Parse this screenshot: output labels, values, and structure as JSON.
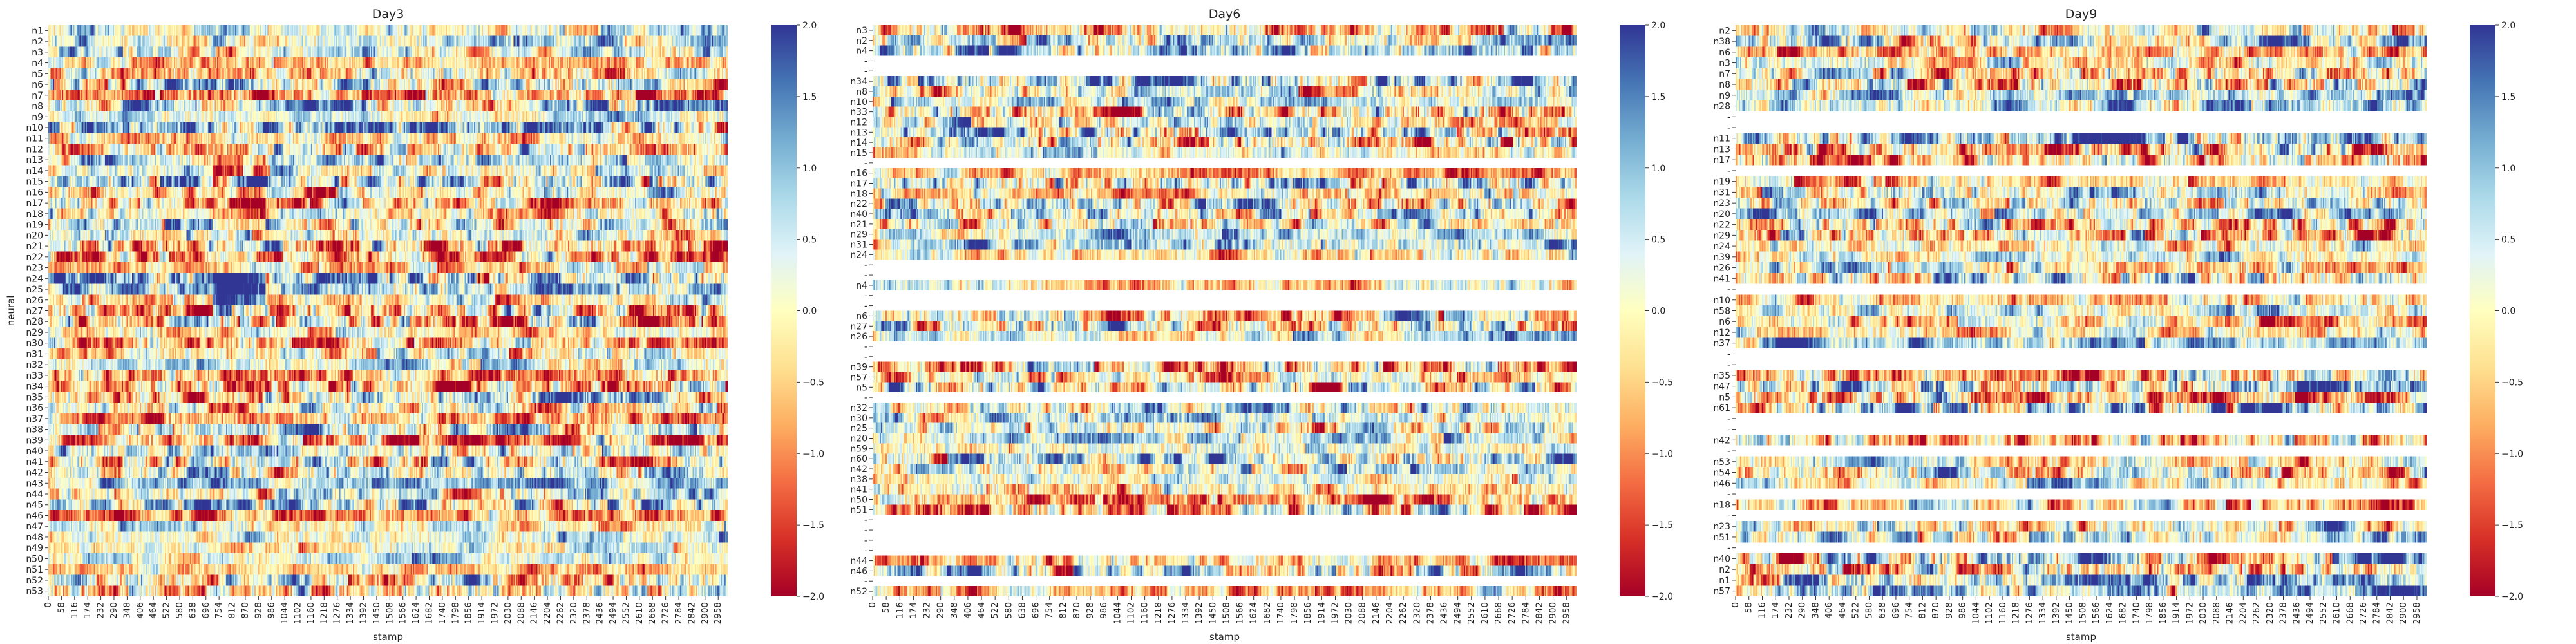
{
  "figure": {
    "colormap": "RdYlBu",
    "colormap_stops": [
      "#a50026",
      "#d73027",
      "#f46d43",
      "#fdae61",
      "#fee090",
      "#ffffbf",
      "#e0f3f8",
      "#abd9e9",
      "#74add1",
      "#4575b4",
      "#313695"
    ],
    "missing_color": "#ffffff"
  },
  "chart_data": [
    {
      "type": "heatmap",
      "title": "Day3",
      "ylabel": "neural",
      "xlabel": "stamp",
      "x_range": [
        0,
        3000
      ],
      "x_ticks": [
        0,
        58,
        116,
        174,
        232,
        290,
        348,
        406,
        464,
        522,
        580,
        638,
        696,
        754,
        812,
        870,
        928,
        986,
        1044,
        1102,
        1160,
        1218,
        1276,
        1334,
        1392,
        1450,
        1508,
        1566,
        1624,
        1682,
        1740,
        1798,
        1856,
        1914,
        1972,
        2030,
        2088,
        2146,
        2204,
        2262,
        2320,
        2378,
        2436,
        2494,
        2552,
        2610,
        2668,
        2726,
        2784,
        2842,
        2900,
        2958
      ],
      "rows": [
        "n1",
        "n2",
        "n3",
        "n4",
        "n5",
        "n6",
        "n7",
        "n8",
        "n9",
        "n10",
        "n11",
        "n12",
        "n13",
        "n14",
        "n15",
        "n16",
        "n17",
        "n18",
        "n19",
        "n20",
        "n21",
        "n22",
        "n23",
        "n24",
        "n25",
        "n26",
        "n27",
        "n28",
        "n29",
        "n30",
        "n31",
        "n32",
        "n33",
        "n34",
        "n35",
        "n36",
        "n37",
        "n38",
        "n39",
        "n40",
        "n41",
        "n42",
        "n43",
        "n44",
        "n45",
        "n46",
        "n47",
        "n48",
        "n49",
        "n50",
        "n51",
        "n52",
        "n53"
      ],
      "row_labels": [
        "n1",
        "n2",
        "n3",
        "n4",
        "n5",
        "n6",
        "n7",
        "n8",
        "n9",
        "n10",
        "n11",
        "n12",
        "n13",
        "n14",
        "n15",
        "n16",
        "n17",
        "n18",
        "n19",
        "n20",
        "n21",
        "n22",
        "n23",
        "n24",
        "n25",
        "n26",
        "n27",
        "n28",
        "n29",
        "n30",
        "n31",
        "n32",
        "n33",
        "n34",
        "n35",
        "n36",
        "n37",
        "n38",
        "n39",
        "n40",
        "n41",
        "n42",
        "n43",
        "n44",
        "n45",
        "n46",
        "n47",
        "n48",
        "n49",
        "n50",
        "n51",
        "n52",
        "n53"
      ],
      "colorbar": {
        "vmin": -2.0,
        "vmax": 2.0,
        "ticks": [
          "2.0",
          "1.5",
          "1.0",
          "0.5",
          "0.0",
          "−0.5",
          "−1.0",
          "−1.5",
          "−2.0"
        ]
      }
    },
    {
      "type": "heatmap",
      "title": "Day6",
      "ylabel": "",
      "xlabel": "stamp",
      "x_range": [
        0,
        3000
      ],
      "x_ticks": [
        0,
        58,
        116,
        174,
        232,
        290,
        348,
        406,
        464,
        522,
        580,
        638,
        696,
        754,
        812,
        870,
        928,
        986,
        1044,
        1102,
        1160,
        1218,
        1276,
        1334,
        1392,
        1450,
        1508,
        1566,
        1624,
        1682,
        1740,
        1798,
        1856,
        1914,
        1972,
        2030,
        2088,
        2146,
        2204,
        2262,
        2320,
        2378,
        2436,
        2494,
        2552,
        2610,
        2668,
        2726,
        2784,
        2842,
        2900,
        2958
      ],
      "rows": [
        "n3",
        "n2",
        "n4",
        "",
        "",
        "n34",
        "n8",
        "n10",
        "n33",
        "n12",
        "n13",
        "n14",
        "n15",
        "",
        "n16",
        "n17",
        "n18",
        "n22",
        "n40",
        "n21",
        "n29",
        "n31",
        "n24",
        "",
        "",
        "n4",
        "",
        "",
        "n6",
        "n27",
        "n26",
        "",
        "",
        "n39",
        "n57",
        "n5",
        "",
        "n32",
        "n30",
        "n25",
        "n20",
        "n59",
        "n60",
        "n42",
        "n38",
        "n41",
        "n50",
        "n51",
        "",
        "",
        "",
        "",
        "n44",
        "n46",
        "",
        "n52"
      ],
      "row_labels": [
        "n3",
        "n2",
        "n4",
        "",
        "",
        "n34",
        "n8",
        "n10",
        "n33",
        "n12",
        "n13",
        "n14",
        "n15",
        "",
        "n16",
        "n17",
        "n18",
        "n22",
        "n40",
        "n21",
        "n29",
        "n31",
        "n24",
        "",
        "",
        "n4",
        "",
        "",
        "n6",
        "n27",
        "n26",
        "",
        "",
        "n39",
        "n57",
        "n5",
        "",
        "n32",
        "n30",
        "n25",
        "n20",
        "n59",
        "n60",
        "n42",
        "n38",
        "n41",
        "n50",
        "n51",
        "",
        "",
        "",
        "",
        "n44",
        "n46",
        "",
        "n52"
      ],
      "colorbar": {
        "vmin": -2.0,
        "vmax": 2.0,
        "ticks": [
          "2.0",
          "1.5",
          "1.0",
          "0.5",
          "0.0",
          "−0.5",
          "−1.0",
          "−1.5",
          "−2.0"
        ]
      }
    },
    {
      "type": "heatmap",
      "title": "Day9",
      "ylabel": "",
      "xlabel": "stamp",
      "x_range": [
        0,
        3000
      ],
      "x_ticks": [
        0,
        58,
        116,
        174,
        232,
        290,
        348,
        406,
        464,
        522,
        580,
        638,
        696,
        754,
        812,
        870,
        928,
        986,
        1044,
        1102,
        1160,
        1218,
        1276,
        1334,
        1392,
        1450,
        1508,
        1566,
        1624,
        1682,
        1740,
        1798,
        1856,
        1914,
        1972,
        2030,
        2088,
        2146,
        2204,
        2262,
        2320,
        2378,
        2436,
        2494,
        2552,
        2610,
        2668,
        2726,
        2784,
        2842,
        2900,
        2958
      ],
      "rows": [
        "n2",
        "n38",
        "n6",
        "n3",
        "n7",
        "n8",
        "n9",
        "n28",
        "",
        "",
        "n11",
        "n13",
        "n17",
        "",
        "n19",
        "n31",
        "n23",
        "n20",
        "n22",
        "n29",
        "n24",
        "n39",
        "n26",
        "n41",
        "",
        "n10",
        "n58",
        "n6",
        "n12",
        "n37",
        "",
        "",
        "n35",
        "n47",
        "n5",
        "n61",
        "",
        "",
        "n42",
        "",
        "n53",
        "n54",
        "n46",
        "",
        "n18",
        "",
        "n23",
        "n51",
        "",
        "n40",
        "n2",
        "n1",
        "n57"
      ],
      "row_labels": [
        "n2",
        "n38",
        "n6",
        "n3",
        "n7",
        "n8",
        "n9",
        "n28",
        "",
        "",
        "n11",
        "n13",
        "n17",
        "",
        "n19",
        "n31",
        "n23",
        "n20",
        "n22",
        "n29",
        "n24",
        "n39",
        "n26",
        "n41",
        "",
        "n10",
        "n58",
        "n6",
        "n12",
        "n37",
        "",
        "",
        "n35",
        "n47",
        "n5",
        "n61",
        "",
        "",
        "n42",
        "",
        "n53",
        "n54",
        "n46",
        "",
        "n18",
        "",
        "n23",
        "n51",
        "",
        "n40",
        "n2",
        "n1",
        "n57"
      ],
      "colorbar": {
        "vmin": -2.0,
        "vmax": 2.0,
        "ticks": [
          "2.0",
          "1.5",
          "1.0",
          "0.5",
          "0.0",
          "−0.5",
          "−1.0",
          "−1.5",
          "−2.0"
        ]
      }
    }
  ]
}
